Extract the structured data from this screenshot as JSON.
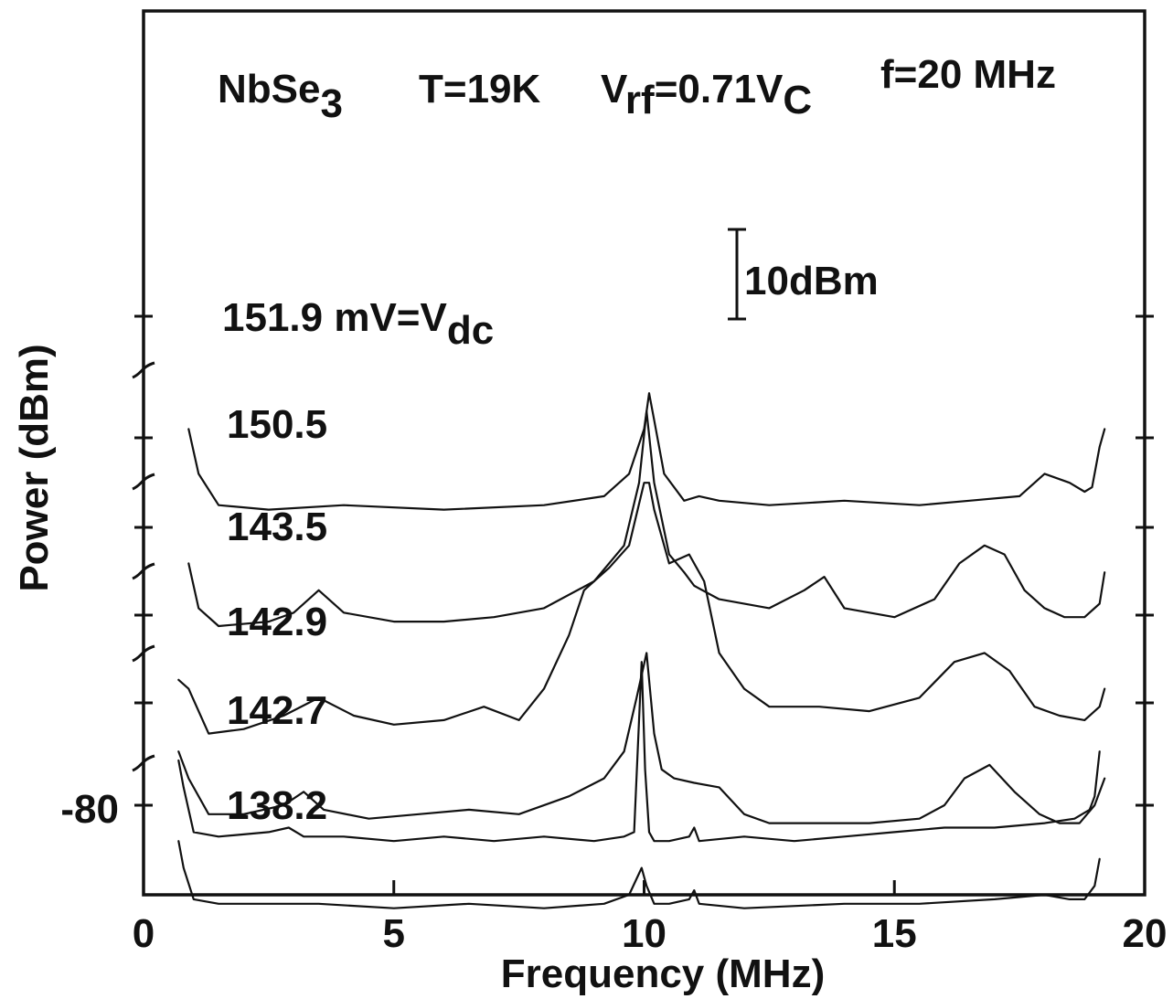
{
  "chart_data": {
    "type": "line",
    "title": {
      "material": "NbSe",
      "material_sub": "3",
      "temp": "T=19K",
      "vrf_prefix": "V",
      "vrf_sub": "rf",
      "vrf_mid": "=0.71V",
      "vrf_sub2": "C",
      "freq": "f=20 MHz"
    },
    "xlabel": "Frequency (MHz)",
    "ylabel": "Power (dBm)",
    "xlim": [
      0,
      20
    ],
    "xticks": [
      "0",
      "5",
      "10",
      "15",
      "20"
    ],
    "ytick_label": "-80",
    "scale_bar": "10dBm",
    "grid": false,
    "series": [
      {
        "name": "151.9 mV=V",
        "name_sub": "dc",
        "x": [
          0.9,
          1.1,
          1.5,
          2.5,
          4,
          6,
          8,
          9.2,
          9.7,
          10.0,
          10.1,
          10.2,
          10.4,
          10.8,
          11.1,
          11.5,
          12.5,
          14,
          15.5,
          16.5,
          17.5,
          18.0,
          18.5,
          18.8,
          18.95,
          19.1,
          19.2
        ],
        "y": [
          -38,
          -43,
          -46.5,
          -47,
          -46.5,
          -47,
          -46.5,
          -45.5,
          -43,
          -38,
          -34,
          -37,
          -43,
          -46,
          -45.5,
          -46,
          -46.5,
          -46,
          -46.5,
          -46,
          -45.5,
          -43,
          -44,
          -45,
          -44.5,
          -40,
          -38
        ]
      },
      {
        "name": "150.5",
        "x": [
          0.9,
          1.1,
          1.5,
          2.5,
          3.0,
          3.5,
          4.0,
          5,
          6,
          7,
          8,
          9,
          9.6,
          9.9,
          10.05,
          10.2,
          10.5,
          10.8,
          11,
          11.5,
          12.5,
          13.2,
          13.6,
          14,
          15,
          15.8,
          16.3,
          16.8,
          17.2,
          17.6,
          18.0,
          18.4,
          18.8,
          19.1,
          19.2
        ],
        "y": [
          -53,
          -58,
          -60,
          -59.5,
          -58.5,
          -56,
          -58.5,
          -59.5,
          -59.5,
          -59,
          -58,
          -55,
          -51,
          -44,
          -36,
          -44,
          -52,
          -54,
          -55.5,
          -57,
          -58,
          -56,
          -54.5,
          -58,
          -59,
          -57,
          -53,
          -51,
          -52,
          -56,
          -58,
          -59,
          -59,
          -57.5,
          -54
        ]
      },
      {
        "name": "143.5",
        "x": [
          0.7,
          0.9,
          1.3,
          2.0,
          2.8,
          3.5,
          4.2,
          5,
          6,
          6.8,
          7.5,
          8.0,
          8.5,
          8.8,
          9.3,
          9.7,
          10.0,
          10.1,
          10.2,
          10.5,
          10.9,
          11.2,
          11.5,
          12.0,
          12.5,
          13.5,
          14.5,
          15.5,
          16.2,
          16.8,
          17.3,
          17.8,
          18.3,
          18.8,
          19.1,
          19.2
        ],
        "y": [
          -66,
          -67,
          -72,
          -71.5,
          -70,
          -68,
          -70,
          -71,
          -70.5,
          -69,
          -70.5,
          -67,
          -61,
          -56,
          -53.5,
          -51,
          -44,
          -44,
          -47,
          -53,
          -52,
          -55,
          -63,
          -67,
          -69,
          -69,
          -69.5,
          -68,
          -64,
          -63,
          -65,
          -69,
          -70,
          -70.5,
          -69,
          -67
        ]
      },
      {
        "name": "142.9",
        "x": [
          0.7,
          0.9,
          1.3,
          2.0,
          2.8,
          3.2,
          3.6,
          4.5,
          5.5,
          6.5,
          7.5,
          8.5,
          9.2,
          9.6,
          9.85,
          10.05,
          10.2,
          10.35,
          10.6,
          11,
          11.5,
          12.0,
          12.5,
          13.5,
          14.5,
          15.5,
          16.0,
          16.4,
          16.9,
          17.4,
          17.9,
          18.3,
          18.7,
          19.0,
          19.2
        ],
        "y": [
          -74,
          -77,
          -81,
          -81,
          -80,
          -78.5,
          -80.5,
          -81.5,
          -81,
          -80.5,
          -81,
          -79,
          -77,
          -74,
          -68,
          -63,
          -72,
          -76,
          -77,
          -77.5,
          -78,
          -81,
          -82,
          -82,
          -82,
          -81.5,
          -80,
          -77,
          -75.5,
          -78.5,
          -81,
          -82,
          -82,
          -80,
          -77
        ]
      },
      {
        "name": "142.7",
        "x": [
          0.7,
          0.8,
          1.0,
          1.5,
          2.5,
          3.5,
          5,
          6.5,
          8,
          9.2,
          9.7,
          9.95,
          10.05,
          10.2,
          10.5,
          10.9,
          11.0,
          11.1,
          12,
          14,
          15.5,
          17,
          18,
          18.5,
          18.8,
          19.0,
          19.1
        ],
        "y": [
          -84,
          -87,
          -90.5,
          -91,
          -91,
          -91,
          -91.5,
          -91,
          -91.5,
          -91,
          -90,
          -87,
          -89,
          -91,
          -91,
          -90.5,
          -89.5,
          -91,
          -91.5,
          -91,
          -91,
          -90.5,
          -90,
          -90.5,
          -90.5,
          -89,
          -86
        ]
      },
      {
        "name": "138.2",
        "x": [
          0.7,
          0.8,
          1.0,
          1.5,
          2.5,
          2.9,
          3.2,
          4,
          5,
          6,
          7,
          8,
          9,
          9.6,
          9.8,
          9.88,
          9.95,
          10.02,
          10.1,
          10.2,
          10.5,
          10.9,
          11.0,
          11.1,
          12,
          13,
          14,
          15,
          16,
          17,
          18,
          18.6,
          18.9,
          19.0,
          19.1
        ],
        "y": [
          -75,
          -78,
          -83,
          -83.5,
          -83,
          -82.5,
          -83.5,
          -83.5,
          -84,
          -83.5,
          -84,
          -83.5,
          -84,
          -83.5,
          -83,
          -73,
          -64,
          -76,
          -83,
          -84,
          -84,
          -83.5,
          -82.5,
          -84,
          -83.5,
          -84,
          -83.5,
          -83,
          -82.5,
          -82.5,
          -82,
          -81.5,
          -80.5,
          -79,
          -74
        ]
      }
    ]
  }
}
